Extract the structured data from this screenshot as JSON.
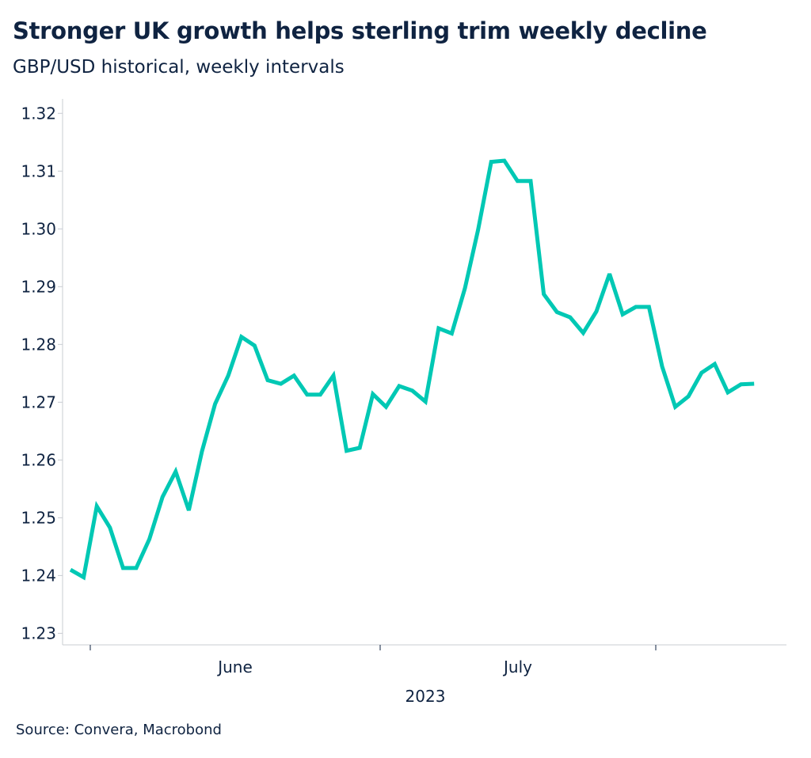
{
  "title": "Stronger UK growth helps sterling trim weekly decline",
  "subtitle": "GBP/USD historical, weekly intervals",
  "source": "Source: Convera, Macrobond",
  "chart_data": {
    "type": "line",
    "title": "Stronger UK growth helps sterling trim weekly decline",
    "subtitle": "GBP/USD historical, weekly intervals",
    "xlabel": "2023",
    "ylabel": "",
    "x_tick_labels": [
      "June",
      "July"
    ],
    "y_ticks": [
      1.23,
      1.24,
      1.25,
      1.26,
      1.27,
      1.28,
      1.29,
      1.3,
      1.31,
      1.32
    ],
    "y_tick_labels": [
      "1.23",
      "1.24",
      "1.25",
      "1.26",
      "1.27",
      "1.28",
      "1.29",
      "1.30",
      "1.31",
      "1.32"
    ],
    "ylim": [
      1.228,
      1.3225
    ],
    "xlim": [
      "2023-05-29",
      "2023-08-15"
    ],
    "grid": false,
    "legend": "none",
    "line_color": "#00c8b4",
    "series": [
      {
        "x": [
          "2023-05-30",
          "2023-05-31",
          "2023-06-01",
          "2023-06-02",
          "2023-06-05",
          "2023-06-06",
          "2023-06-07",
          "2023-06-08",
          "2023-06-09",
          "2023-06-12",
          "2023-06-13",
          "2023-06-14",
          "2023-06-15",
          "2023-06-16",
          "2023-06-19",
          "2023-06-20",
          "2023-06-21",
          "2023-06-22",
          "2023-06-23",
          "2023-06-26",
          "2023-06-27",
          "2023-06-28",
          "2023-06-29",
          "2023-06-30",
          "2023-07-03",
          "2023-07-04",
          "2023-07-05",
          "2023-07-06",
          "2023-07-07",
          "2023-07-10",
          "2023-07-11",
          "2023-07-12",
          "2023-07-13",
          "2023-07-14",
          "2023-07-17",
          "2023-07-18",
          "2023-07-19",
          "2023-07-20",
          "2023-07-21",
          "2023-07-24",
          "2023-07-25",
          "2023-07-26",
          "2023-07-27",
          "2023-07-28",
          "2023-07-31",
          "2023-08-01",
          "2023-08-02",
          "2023-08-03",
          "2023-08-04",
          "2023-08-07",
          "2023-08-08",
          "2023-08-09",
          "2023-08-10"
        ],
        "values": [
          1.241,
          1.2397,
          1.252,
          1.2483,
          1.2413,
          1.2413,
          1.2463,
          1.2536,
          1.258,
          1.2513,
          1.2615,
          1.2697,
          1.2746,
          1.2813,
          1.2798,
          1.2738,
          1.2732,
          1.2746,
          1.2713,
          1.2713,
          1.2746,
          1.2616,
          1.2621,
          1.2714,
          1.2692,
          1.2728,
          1.272,
          1.2701,
          1.2828,
          1.2819,
          1.2897,
          1.2998,
          1.3116,
          1.3118,
          1.3083,
          1.3083,
          1.2887,
          1.2856,
          1.2847,
          1.282,
          1.2857,
          1.2922,
          1.2852,
          1.2865,
          1.2865,
          1.2762,
          1.2692,
          1.271,
          1.2751,
          1.2766,
          1.2717,
          1.2731,
          1.2732
        ]
      }
    ]
  }
}
